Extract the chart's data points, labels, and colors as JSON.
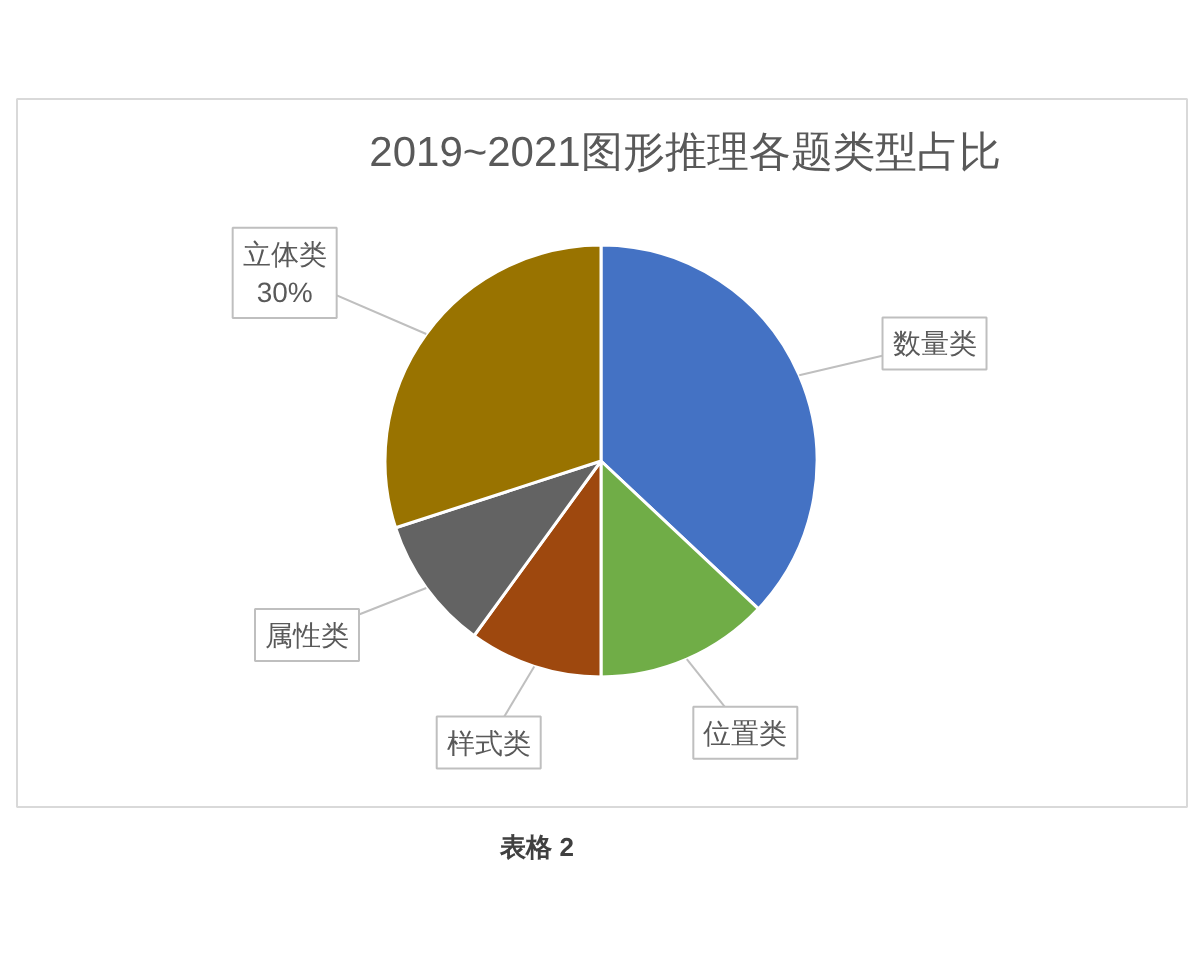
{
  "chart_data": {
    "type": "pie",
    "title": "2019~2021图形推理各题类型占比",
    "categories": [
      "数量类",
      "位置类",
      "样式类",
      "属性类",
      "立体类"
    ],
    "values": [
      37,
      13,
      10,
      10,
      30
    ],
    "colors": [
      "#4472c4",
      "#70ad47",
      "#9e480e",
      "#636363",
      "#997300"
    ],
    "value_labels": [
      null,
      null,
      null,
      null,
      "30%"
    ],
    "annotations": [
      "表格 2"
    ]
  }
}
